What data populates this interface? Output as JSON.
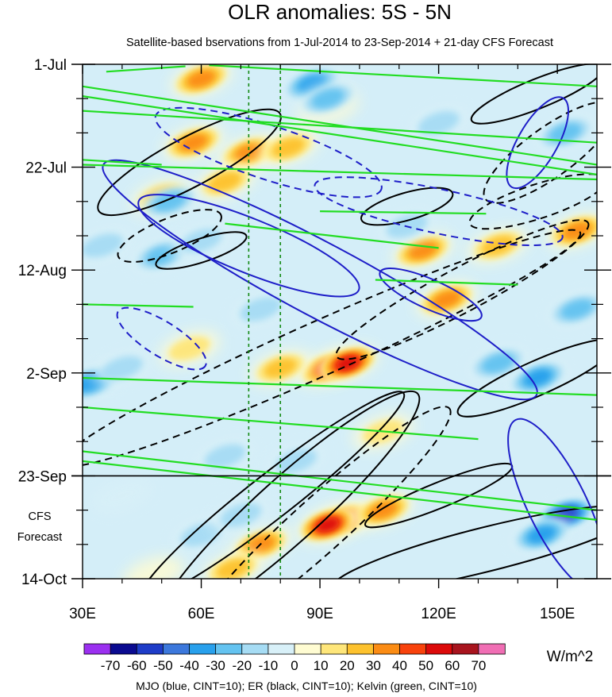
{
  "chart_data": {
    "type": "heatmap",
    "title": "OLR anomalies: 5S - 5N",
    "subtitle": "Satellite-based bservations from 1-Jul-2014 to 23-Sep-2014 + 21-day CFS Forecast",
    "x_axis": {
      "range": [
        30,
        160
      ],
      "ticks": [
        30,
        60,
        90,
        120,
        150
      ],
      "tick_labels": [
        "30E",
        "60E",
        "90E",
        "120E",
        "150E"
      ]
    },
    "y_axis": {
      "direction": "time increasing downward",
      "range_days": [
        0,
        105
      ],
      "ticks_days": [
        0,
        21,
        42,
        63,
        84,
        105
      ],
      "tick_labels": [
        "1-Jul",
        "22-Jul",
        "12-Aug",
        "2-Sep",
        "23-Sep",
        "14-Oct"
      ],
      "minor_tick_step_days": 7
    },
    "observation_end_day": 84,
    "forecast_label": [
      "CFS",
      "Forecast"
    ],
    "vertical_reference_lines_lon": [
      72,
      80
    ],
    "colorbar": {
      "unit": "W/m^2",
      "tick_labels": [
        "-70",
        "-60",
        "-50",
        "-40",
        "-30",
        "-20",
        "-10",
        "0",
        "10",
        "20",
        "30",
        "40",
        "50",
        "60",
        "70"
      ],
      "levels": [
        -70,
        -60,
        -50,
        -40,
        -30,
        -20,
        -10,
        0,
        10,
        20,
        30,
        40,
        50,
        60,
        70
      ],
      "colors": [
        "#9b30f0",
        "#0a0a90",
        "#1e3cc8",
        "#3c78dc",
        "#28a0ec",
        "#64c3f0",
        "#a6dcf4",
        "#d8f0f8",
        "#fffcd2",
        "#fee67a",
        "#fdc22e",
        "#fb8c14",
        "#f8420c",
        "#dc0a0a",
        "#a8141e",
        "#f06eb4"
      ]
    },
    "contour_legend": "MJO (blue, CINT=10); ER (black, CINT=10); Kelvin (green, CINT=10)",
    "series_colors": {
      "MJO": "#1e1ec8",
      "ER": "#000000",
      "Kelvin": "#22dd22"
    },
    "anomaly_features": [
      {
        "lon": 60,
        "day": 3,
        "value": 45
      },
      {
        "lon": 58,
        "day": 16,
        "value": 45
      },
      {
        "lon": 72,
        "day": 18,
        "value": 40
      },
      {
        "lon": 82,
        "day": 17,
        "value": 35
      },
      {
        "lon": 66,
        "day": 24,
        "value": 30
      },
      {
        "lon": 50,
        "day": 27,
        "value": 30
      },
      {
        "lon": 92,
        "day": 9,
        "value": 15
      },
      {
        "lon": 116,
        "day": 38,
        "value": 40
      },
      {
        "lon": 135,
        "day": 37,
        "value": 30
      },
      {
        "lon": 155,
        "day": 34,
        "value": 40
      },
      {
        "lon": 92,
        "day": 62,
        "value": 50
      },
      {
        "lon": 97,
        "day": 61,
        "value": 60
      },
      {
        "lon": 80,
        "day": 62,
        "value": 30
      },
      {
        "lon": 57,
        "day": 58,
        "value": 25
      },
      {
        "lon": 122,
        "day": 48,
        "value": 40
      },
      {
        "lon": 96,
        "day": 93,
        "value": 50
      },
      {
        "lon": 92,
        "day": 94,
        "value": 60
      },
      {
        "lon": 106,
        "day": 91,
        "value": 40
      },
      {
        "lon": 75,
        "day": 98,
        "value": 45
      },
      {
        "lon": 68,
        "day": 103,
        "value": 30
      },
      {
        "lon": 106,
        "day": 75,
        "value": 25
      },
      {
        "lon": 48,
        "day": 104,
        "value": 15
      },
      {
        "lon": 88,
        "day": 4,
        "value": -40
      },
      {
        "lon": 92,
        "day": 7,
        "value": -35
      },
      {
        "lon": 52,
        "day": 28,
        "value": -30
      },
      {
        "lon": 35,
        "day": 37,
        "value": -25
      },
      {
        "lon": 50,
        "day": 39,
        "value": -30
      },
      {
        "lon": 60,
        "day": 36,
        "value": -20
      },
      {
        "lon": 32,
        "day": 65,
        "value": -40
      },
      {
        "lon": 40,
        "day": 62,
        "value": -25
      },
      {
        "lon": 75,
        "day": 50,
        "value": -20
      },
      {
        "lon": 145,
        "day": 64,
        "value": -45
      },
      {
        "lon": 135,
        "day": 61,
        "value": -35
      },
      {
        "lon": 152,
        "day": 92,
        "value": -65
      },
      {
        "lon": 146,
        "day": 96,
        "value": -40
      },
      {
        "lon": 60,
        "day": 96,
        "value": -25
      },
      {
        "lon": 70,
        "day": 92,
        "value": -25
      },
      {
        "lon": 84,
        "day": 81,
        "value": -20
      },
      {
        "lon": 155,
        "day": 50,
        "value": -30
      },
      {
        "lon": 120,
        "day": 12,
        "value": -25
      },
      {
        "lon": 152,
        "day": 14,
        "value": -35
      },
      {
        "lon": 112,
        "day": 33,
        "value": -25
      },
      {
        "lon": 66,
        "day": 80,
        "value": -20
      },
      {
        "lon": 40,
        "day": 88,
        "value": -15
      }
    ],
    "mjo_contours": [
      {
        "cx": 77,
        "cy": 18,
        "rx": 30,
        "ry": 5.5,
        "angle": 18,
        "style": "dashed"
      },
      {
        "cx": 120,
        "cy": 30,
        "rx": 32,
        "ry": 4.5,
        "angle": 12,
        "style": "dashed"
      },
      {
        "cx": 145,
        "cy": 16,
        "rx": 13,
        "ry": 4,
        "angle": -60,
        "style": "solid"
      },
      {
        "cx": 90,
        "cy": 44,
        "rx": 62,
        "ry": 7.5,
        "angle": 28,
        "style": "solid"
      },
      {
        "cx": 72,
        "cy": 37,
        "rx": 30,
        "ry": 5.5,
        "angle": 22,
        "style": "solid"
      },
      {
        "cx": 118,
        "cy": 47,
        "rx": 14,
        "ry": 3,
        "angle": 24,
        "style": "solid"
      },
      {
        "cx": 50,
        "cy": 56,
        "rx": 13,
        "ry": 3.5,
        "angle": 32,
        "style": "dashed"
      },
      {
        "cx": 150,
        "cy": 90,
        "rx": 24,
        "ry": 6,
        "angle": 64,
        "style": "solid"
      }
    ],
    "er_contours": [
      {
        "cx": 57,
        "cy": 20,
        "rx": 26,
        "ry": 5,
        "angle": -28,
        "style": "solid"
      },
      {
        "cx": 52,
        "cy": 35,
        "rx": 14,
        "ry": 3.5,
        "angle": -22,
        "style": "dashed"
      },
      {
        "cx": 60,
        "cy": 38,
        "rx": 12,
        "ry": 2.4,
        "angle": -18,
        "style": "solid"
      },
      {
        "cx": 112,
        "cy": 29,
        "rx": 12,
        "ry": 2.8,
        "angle": -16,
        "style": "solid"
      },
      {
        "cx": 90,
        "cy": 58,
        "rx": 72,
        "ry": 5.5,
        "angle": -24,
        "style": "dashed"
      },
      {
        "cx": 126,
        "cy": 46,
        "rx": 36,
        "ry": 4.5,
        "angle": -28,
        "style": "dashed"
      },
      {
        "cx": 148,
        "cy": 18,
        "rx": 20,
        "ry": 5,
        "angle": -36,
        "style": "dashed"
      },
      {
        "cx": 145,
        "cy": 6,
        "rx": 18,
        "ry": 3,
        "angle": -22,
        "style": "solid"
      },
      {
        "cx": 145,
        "cy": 28,
        "rx": 18,
        "ry": 3.5,
        "angle": -18,
        "style": "dashed"
      },
      {
        "cx": 145,
        "cy": 64,
        "rx": 22,
        "ry": 3.5,
        "angle": -24,
        "style": "solid"
      },
      {
        "cx": 78,
        "cy": 88,
        "rx": 42,
        "ry": 4.5,
        "angle": -38,
        "style": "solid"
      },
      {
        "cx": 82,
        "cy": 91,
        "rx": 44,
        "ry": 6.5,
        "angle": -42,
        "style": "solid"
      },
      {
        "cx": 90,
        "cy": 94,
        "rx": 44,
        "ry": 5.5,
        "angle": -42,
        "style": "dashed"
      },
      {
        "cx": 132,
        "cy": 99,
        "rx": 40,
        "ry": 4.5,
        "angle": -14,
        "style": "solid"
      },
      {
        "cx": 120,
        "cy": 88,
        "rx": 20,
        "ry": 2.6,
        "angle": -22,
        "style": "solid"
      }
    ],
    "kelvin_contours": [
      {
        "lon1": 36,
        "day1": 1.5,
        "lon2": 56,
        "day2": 0.4
      },
      {
        "lon1": 30,
        "day1": 4.5,
        "lon2": 160,
        "day2": 20.5
      },
      {
        "lon1": 30,
        "day1": 6.5,
        "lon2": 160,
        "day2": 22.5
      },
      {
        "lon1": 30,
        "day1": 9.5,
        "lon2": 160,
        "day2": 16.0
      },
      {
        "lon1": 62,
        "day1": 0.2,
        "lon2": 160,
        "day2": 4.5
      },
      {
        "lon1": 30,
        "day1": 19.5,
        "lon2": 50,
        "day2": 20.5
      },
      {
        "lon1": 30,
        "day1": 20.5,
        "lon2": 160,
        "day2": 23.5
      },
      {
        "lon1": 66,
        "day1": 32.5,
        "lon2": 120,
        "day2": 37.5
      },
      {
        "lon1": 30,
        "day1": 49.0,
        "lon2": 58,
        "day2": 49.5
      },
      {
        "lon1": 30,
        "day1": 64.0,
        "lon2": 160,
        "day2": 67.5
      },
      {
        "lon1": 30,
        "day1": 70.0,
        "lon2": 130,
        "day2": 76.5
      },
      {
        "lon1": 30,
        "day1": 79.0,
        "lon2": 160,
        "day2": 91.0
      },
      {
        "lon1": 30,
        "day1": 81.0,
        "lon2": 160,
        "day2": 93.0
      },
      {
        "lon1": 90,
        "day1": 30.0,
        "lon2": 132,
        "day2": 30.5
      },
      {
        "lon1": 104,
        "day1": 44.0,
        "lon2": 140,
        "day2": 45.0
      }
    ]
  }
}
